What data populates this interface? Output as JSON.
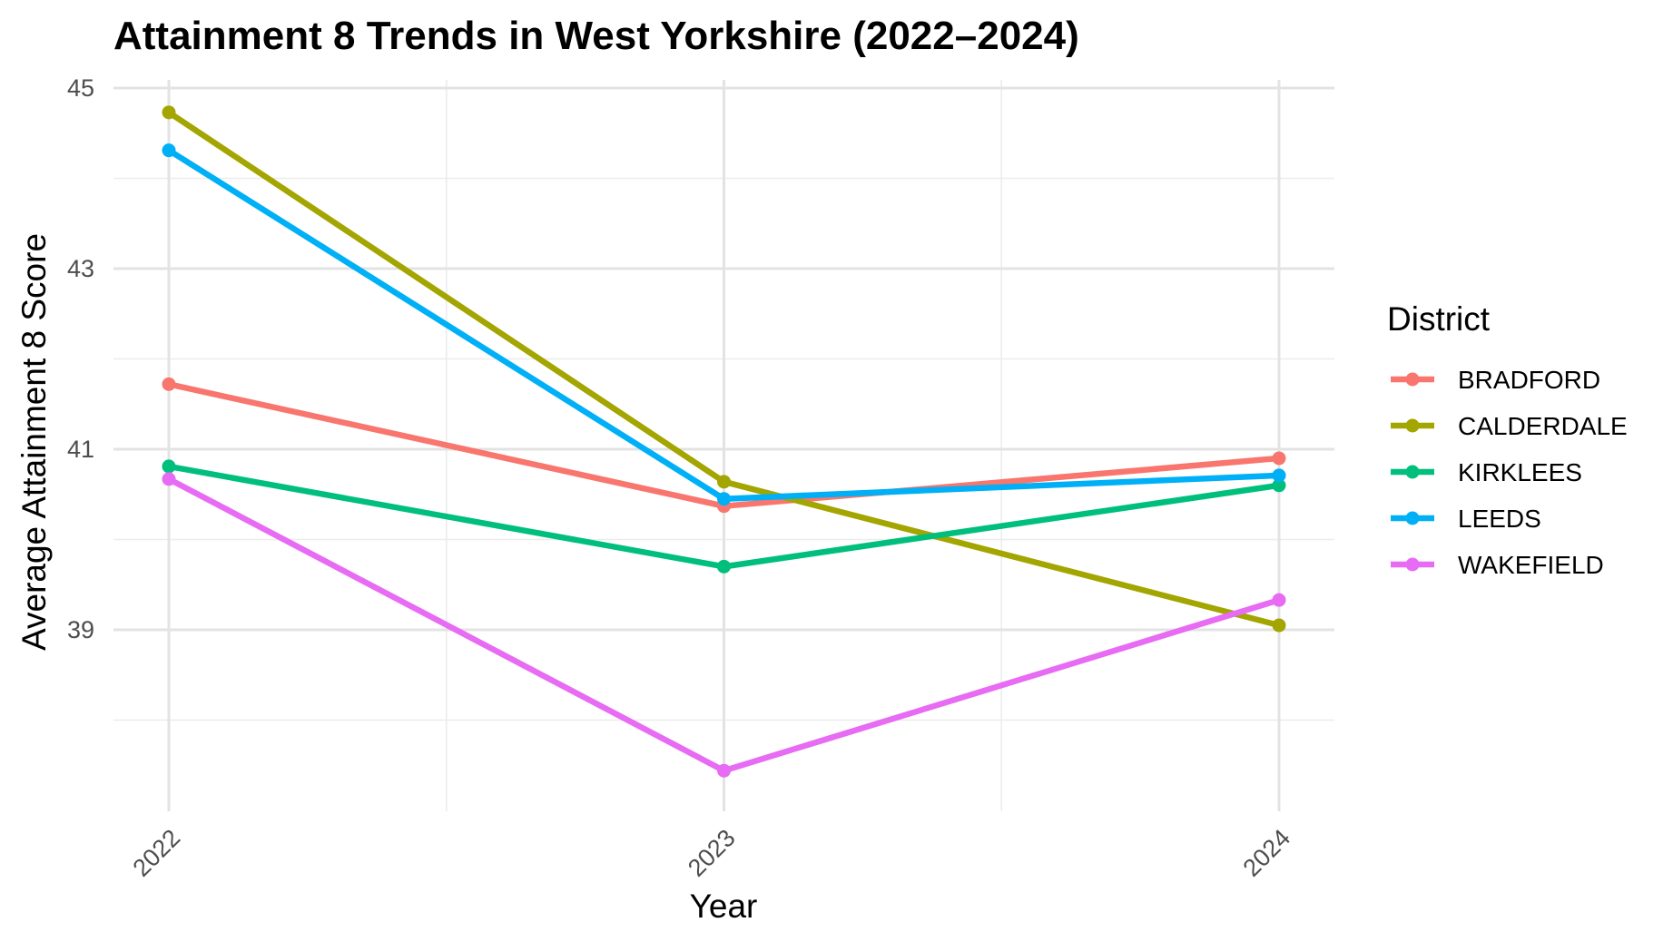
{
  "chart_data": {
    "type": "line",
    "title": "Attainment 8 Trends in West Yorkshire (2022–2024)",
    "xlabel": "Year",
    "ylabel": "Average Attainment 8 Score",
    "categories": [
      "2022",
      "2023",
      "2024"
    ],
    "y_ticks": [
      39,
      41,
      43,
      45
    ],
    "ylim": [
      37.0,
      45.15
    ],
    "grid": true,
    "legend": {
      "title": "District",
      "position": "right"
    },
    "series": [
      {
        "name": "BRADFORD",
        "color": "#F8766D",
        "values": [
          41.72,
          40.37,
          40.9
        ]
      },
      {
        "name": "CALDERDALE",
        "color": "#A3A500",
        "values": [
          44.73,
          40.64,
          39.05
        ]
      },
      {
        "name": "KIRKLEES",
        "color": "#00BF7D",
        "values": [
          40.81,
          39.7,
          40.6
        ]
      },
      {
        "name": "LEEDS",
        "color": "#00B0F6",
        "values": [
          44.31,
          40.45,
          40.71
        ]
      },
      {
        "name": "WAKEFIELD",
        "color": "#E76BF3",
        "values": [
          40.67,
          37.44,
          39.33
        ]
      }
    ]
  }
}
